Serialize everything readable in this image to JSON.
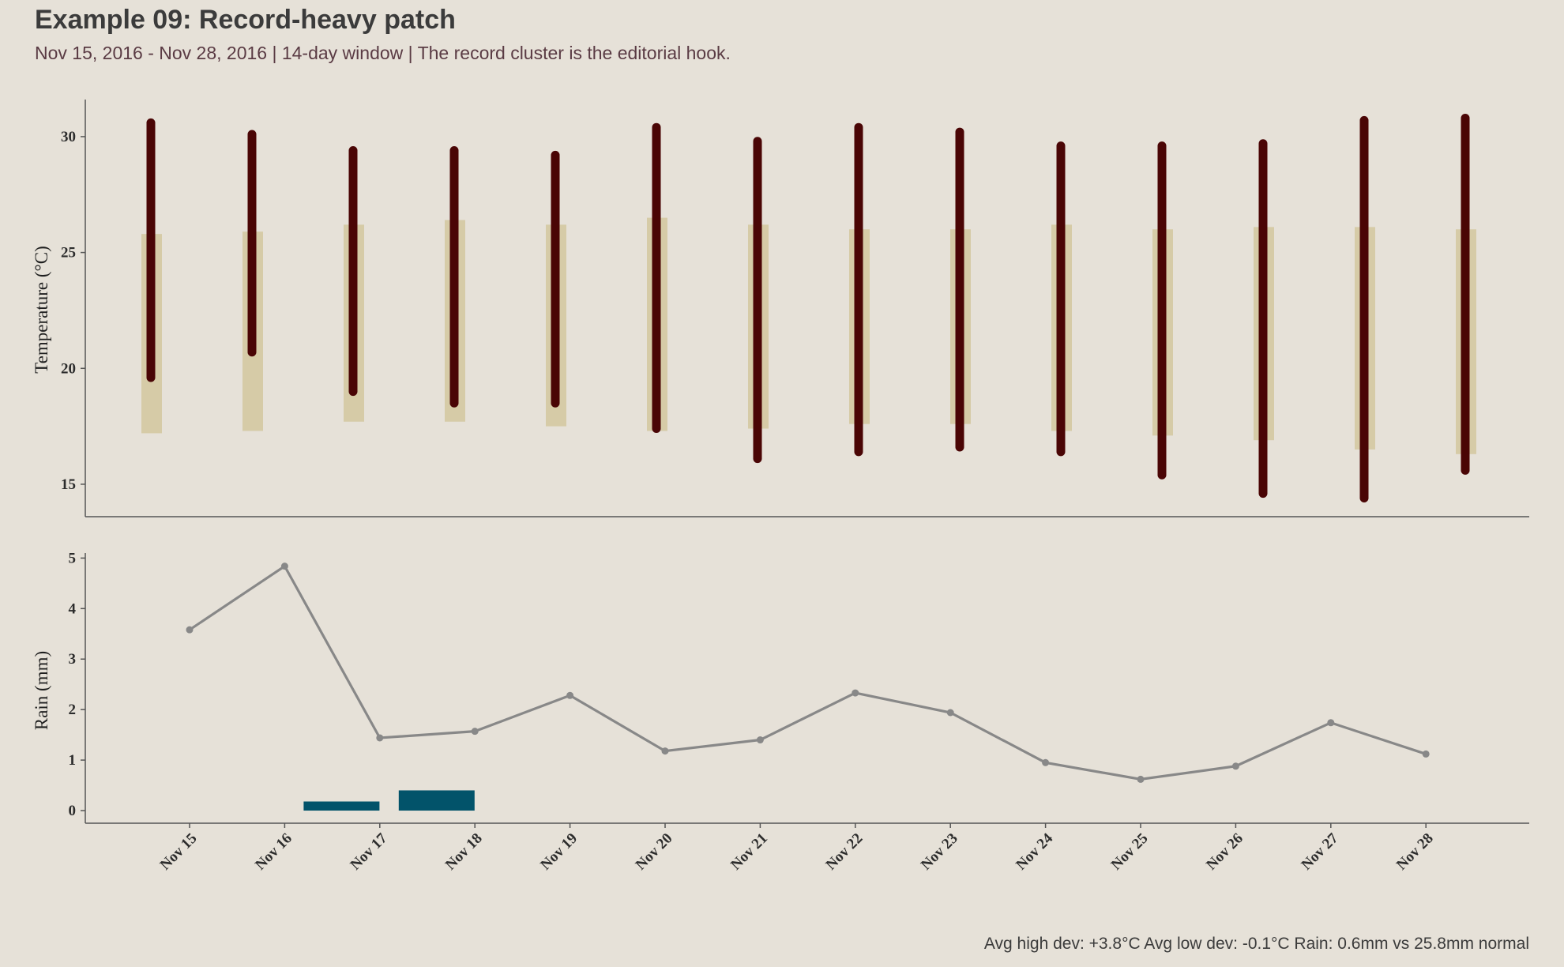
{
  "header": {
    "title": "Example 09: Record-heavy patch",
    "subtitle": "Nov 15, 2016 - Nov 28, 2016  |  14-day window  |  The record cluster is the editorial hook."
  },
  "footer": {
    "text": "Avg high dev: +3.8°C   Avg low dev: -0.1°C   Rain: 0.6mm vs 25.8mm normal"
  },
  "colors": {
    "background": "#e6e1d8",
    "actual_range": "#4a0505",
    "normal_range": "#d6cba7",
    "rain_bar": "#02536a",
    "rain_normal_line": "#888888",
    "axis": "#555555"
  },
  "chart_data": [
    {
      "type": "bar",
      "ylabel": "Temperature (°C)",
      "ylim": [
        13.6,
        31.6
      ],
      "yticks": [
        15,
        20,
        25,
        30
      ],
      "categories": [
        "Nov 15",
        "Nov 16",
        "Nov 17",
        "Nov 18",
        "Nov 19",
        "Nov 20",
        "Nov 21",
        "Nov 22",
        "Nov 23",
        "Nov 24",
        "Nov 25",
        "Nov 26",
        "Nov 27",
        "Nov 28"
      ],
      "series": [
        {
          "name": "",
          "low": [
            17.2,
            17.3,
            17.7,
            17.7,
            17.5,
            17.3,
            17.4,
            17.6,
            17.6,
            17.3,
            17.1,
            16.9,
            16.5,
            16.3
          ],
          "high": [
            25.8,
            25.9,
            26.2,
            26.4,
            26.2,
            26.5,
            26.2,
            26.0,
            26.0,
            26.2,
            26.0,
            26.1,
            26.1,
            26.0
          ]
        },
        {
          "name": "",
          "low": [
            19.6,
            20.7,
            19.0,
            18.5,
            18.5,
            17.4,
            16.1,
            16.4,
            16.6,
            16.4,
            15.4,
            14.6,
            14.4,
            15.6
          ],
          "high": [
            30.6,
            30.1,
            29.4,
            29.4,
            29.2,
            30.4,
            29.8,
            30.4,
            30.2,
            29.6,
            29.6,
            29.7,
            30.7,
            30.8
          ]
        }
      ]
    },
    {
      "type": "bar",
      "ylabel": "Rain (mm)",
      "ylim": [
        -0.25,
        5.1
      ],
      "yticks": [
        0,
        1,
        2,
        3,
        4,
        5
      ],
      "categories": [
        "Nov 15",
        "Nov 16",
        "Nov 17",
        "Nov 18",
        "Nov 19",
        "Nov 20",
        "Nov 21",
        "Nov 22",
        "Nov 23",
        "Nov 24",
        "Nov 25",
        "Nov 26",
        "Nov 27",
        "Nov 28"
      ],
      "series": [
        {
          "name": "",
          "type": "bar",
          "values": [
            0,
            0.18,
            0.4,
            0,
            0,
            0,
            0,
            0,
            0,
            0,
            0,
            0,
            0,
            0
          ]
        },
        {
          "name": "",
          "type": "line",
          "values": [
            3.58,
            4.84,
            1.44,
            1.57,
            2.28,
            1.18,
            1.4,
            2.33,
            1.94,
            0.95,
            0.62,
            0.88,
            1.74,
            1.12
          ]
        }
      ]
    }
  ]
}
